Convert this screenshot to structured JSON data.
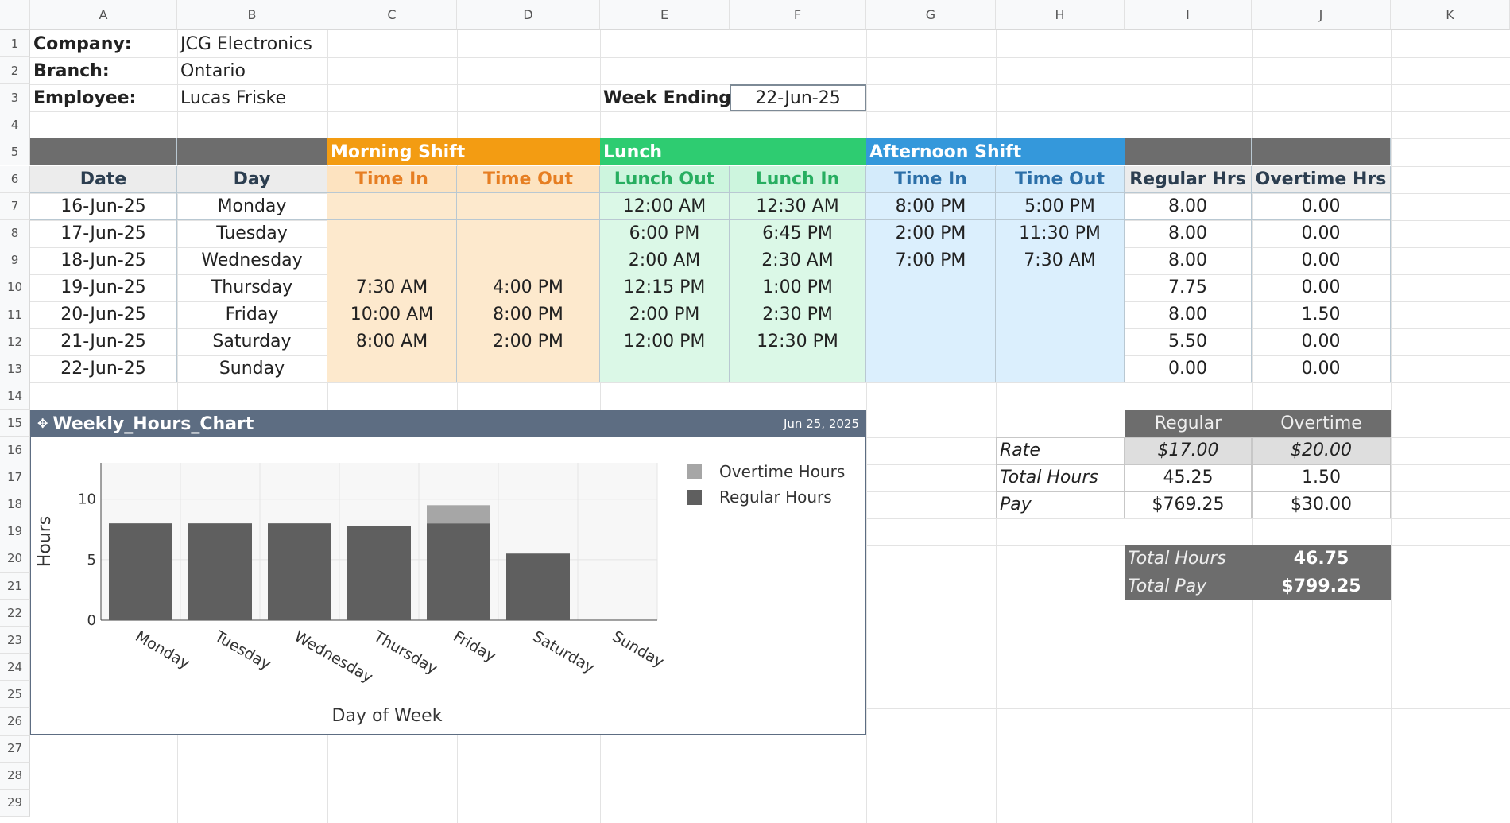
{
  "columns": [
    "A",
    "B",
    "C",
    "D",
    "E",
    "F",
    "G",
    "H",
    "I",
    "J",
    "K"
  ],
  "rows": [
    "1",
    "2",
    "3",
    "4",
    "5",
    "6",
    "7",
    "8",
    "9",
    "10",
    "11",
    "12",
    "13",
    "14",
    "15",
    "16",
    "17",
    "18",
    "19",
    "20",
    "21",
    "22",
    "23",
    "24",
    "25",
    "26",
    "27",
    "28",
    "29"
  ],
  "header": {
    "company_label": "Company:",
    "company": "JCG Electronics",
    "branch_label": "Branch:",
    "branch": "Ontario",
    "employee_label": "Employee:",
    "employee": "Lucas Friske",
    "week_ending_label": "Week Ending:",
    "week_ending": "22-Jun-25"
  },
  "groups": {
    "morning": "Morning Shift",
    "lunch": "Lunch",
    "afternoon": "Afternoon Shift"
  },
  "table_headers": [
    "Date",
    "Day",
    "Time In",
    "Time Out",
    "Lunch Out",
    "Lunch In",
    "Time In",
    "Time Out",
    "Regular Hrs",
    "Overtime Hrs"
  ],
  "table_rows": [
    [
      "16-Jun-25",
      "Monday",
      "",
      "",
      "12:00 AM",
      "12:30 AM",
      "8:00 PM",
      "5:00 PM",
      "8.00",
      "0.00"
    ],
    [
      "17-Jun-25",
      "Tuesday",
      "",
      "",
      "6:00 PM",
      "6:45 PM",
      "2:00 PM",
      "11:30 PM",
      "8.00",
      "0.00"
    ],
    [
      "18-Jun-25",
      "Wednesday",
      "",
      "",
      "2:00 AM",
      "2:30 AM",
      "7:00 PM",
      "7:30 AM",
      "8.00",
      "0.00"
    ],
    [
      "19-Jun-25",
      "Thursday",
      "7:30 AM",
      "4:00 PM",
      "12:15 PM",
      "1:00 PM",
      "",
      "",
      "7.75",
      "0.00"
    ],
    [
      "20-Jun-25",
      "Friday",
      "10:00 AM",
      "8:00 PM",
      "2:00 PM",
      "2:30 PM",
      "",
      "",
      "8.00",
      "1.50"
    ],
    [
      "21-Jun-25",
      "Saturday",
      "8:00 AM",
      "2:00 PM",
      "12:00 PM",
      "12:30 PM",
      "",
      "",
      "5.50",
      "0.00"
    ],
    [
      "22-Jun-25",
      "Sunday",
      "",
      "",
      "",
      "",
      "",
      "",
      "0.00",
      "0.00"
    ]
  ],
  "summary": {
    "col_regular": "Regular",
    "col_overtime": "Overtime",
    "rate_label": "Rate",
    "rate_regular": "$17.00",
    "rate_overtime": "$20.00",
    "hours_label": "Total Hours",
    "hours_regular": "45.25",
    "hours_overtime": "1.50",
    "pay_label": "Pay",
    "pay_regular": "$769.25",
    "pay_overtime": "$30.00",
    "total_hours_label": "Total Hours",
    "total_hours": "46.75",
    "total_pay_label": "Total Pay",
    "total_pay": "$799.25"
  },
  "chart_header": {
    "title": "Weekly_Hours_Chart",
    "date": "Jun 25, 2025"
  },
  "chart_data": {
    "type": "bar",
    "stacked": true,
    "categories": [
      "Monday",
      "Tuesday",
      "Wednesday",
      "Thursday",
      "Friday",
      "Saturday",
      "Sunday"
    ],
    "series": [
      {
        "name": "Regular Hours",
        "values": [
          8,
          8,
          8,
          7.75,
          8,
          5.5,
          0
        ],
        "color": "#5f5f5f"
      },
      {
        "name": "Overtime Hours",
        "values": [
          0,
          0,
          0,
          0,
          1.5,
          0,
          0
        ],
        "color": "#a6a6a6"
      }
    ],
    "xlabel": "Day of Week",
    "ylabel": "Hours",
    "ylim": [
      0,
      13
    ],
    "yticks": [
      0,
      5,
      10
    ],
    "grid": true,
    "legend": "top-right"
  },
  "colors": {
    "orange": "#f39c12",
    "green": "#2ecc71",
    "blue": "#3498db",
    "dark": "#6d6d6d",
    "chart_header": "#5d6d82"
  }
}
